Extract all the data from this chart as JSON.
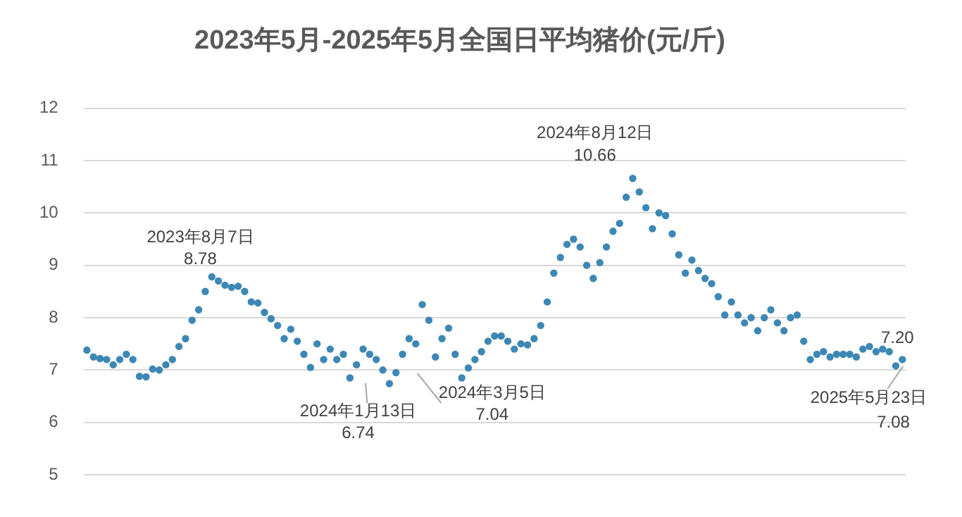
{
  "chart_data": {
    "type": "scatter",
    "title": "2023年5月-2025年5月全国日平均猪价(元/斤)",
    "categories": [
      null,
      null,
      null,
      null,
      null,
      null,
      null,
      null,
      null,
      null,
      null,
      null,
      null,
      null,
      null,
      null,
      null,
      null,
      null,
      null,
      null,
      null,
      null,
      null,
      null,
      null,
      null,
      null,
      null,
      null,
      null,
      null,
      null,
      null,
      null,
      null,
      null,
      null,
      null,
      null,
      null,
      null,
      null,
      null,
      null,
      null,
      null,
      null,
      null,
      null,
      null,
      null,
      null,
      null,
      null,
      null,
      null,
      null,
      null,
      null,
      null,
      null,
      null,
      null,
      null,
      null,
      null,
      null,
      null,
      null,
      null,
      null,
      null,
      null,
      null,
      null,
      null,
      null,
      null,
      null,
      null,
      null,
      null,
      null,
      null,
      null,
      null,
      null,
      null,
      null,
      null,
      null,
      null,
      null,
      null,
      null,
      null,
      null,
      null,
      null,
      null,
      null,
      null,
      null,
      null,
      null,
      null,
      null,
      null,
      null,
      null,
      null,
      null,
      null,
      null,
      null,
      null,
      null,
      null,
      null,
      null,
      null,
      null,
      null,
      null
    ],
    "values": [
      7.38,
      7.25,
      7.22,
      7.2,
      7.1,
      7.2,
      7.3,
      7.2,
      6.88,
      6.87,
      7.02,
      7.0,
      7.1,
      7.2,
      7.45,
      7.6,
      7.95,
      8.15,
      8.5,
      8.78,
      8.7,
      8.62,
      8.58,
      8.6,
      8.5,
      8.3,
      8.28,
      8.1,
      7.98,
      7.85,
      7.6,
      7.78,
      7.55,
      7.3,
      7.05,
      7.5,
      7.2,
      7.4,
      7.2,
      7.3,
      6.85,
      7.1,
      7.4,
      7.3,
      7.2,
      7.0,
      6.74,
      6.95,
      7.3,
      7.6,
      7.5,
      8.25,
      7.95,
      7.25,
      7.6,
      7.8,
      7.3,
      6.85,
      7.04,
      7.2,
      7.35,
      7.55,
      7.65,
      7.65,
      7.55,
      7.4,
      7.5,
      7.48,
      7.6,
      7.85,
      8.3,
      8.85,
      9.15,
      9.4,
      9.5,
      9.35,
      9.0,
      8.75,
      9.05,
      9.35,
      9.65,
      9.8,
      10.3,
      10.66,
      10.4,
      10.1,
      9.7,
      10.0,
      9.95,
      9.6,
      9.2,
      8.85,
      9.1,
      8.9,
      8.75,
      8.65,
      8.4,
      8.05,
      8.3,
      8.05,
      7.9,
      8.0,
      7.75,
      8.0,
      8.15,
      7.9,
      7.75,
      8.0,
      8.05,
      7.55,
      7.2,
      7.3,
      7.35,
      7.25,
      7.3,
      7.3,
      7.3,
      7.25,
      7.4,
      7.45,
      7.35,
      7.4,
      7.35,
      7.08,
      7.2
    ],
    "color": "#3d87b4",
    "marker": "circle",
    "grid": "y",
    "tick_labels": "y",
    "ylim": [
      5,
      12
    ],
    "yticks": [
      5,
      6,
      7,
      8,
      9,
      10,
      11,
      12
    ],
    "annotations": [
      "2023年8月7日",
      "8.78",
      "2024年1月13日",
      "6.74",
      "2024年3月5日",
      "7.04",
      "2024年8月12日",
      "10.66",
      "7.20",
      "2025年5月23日",
      "7.08"
    ]
  }
}
